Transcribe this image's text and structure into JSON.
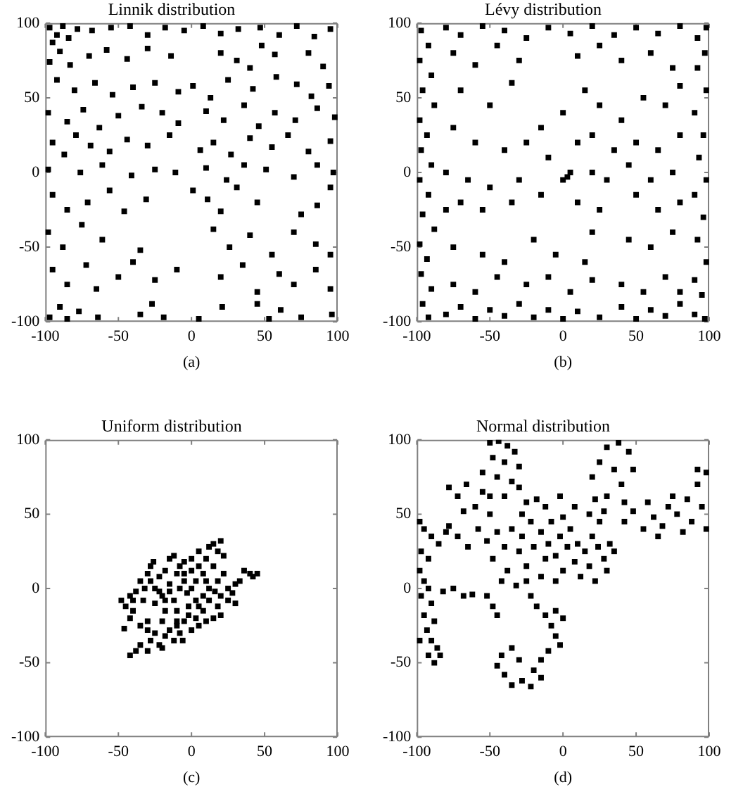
{
  "chart_data": [
    {
      "type": "scatter",
      "title": "Linnik distribution",
      "xlabel": "(a)",
      "color": "#000000",
      "marker": "square",
      "xlim": [
        -100,
        100
      ],
      "ylim": [
        -100,
        100
      ],
      "xticks": [
        -100,
        -50,
        0,
        50,
        100
      ],
      "yticks": [
        -100,
        -50,
        0,
        50,
        100
      ],
      "x": [
        -97,
        -92,
        -88,
        -95,
        -84,
        -90,
        -78,
        -68,
        -55,
        -42,
        -30,
        -18,
        -5,
        8,
        20,
        32,
        47,
        60,
        72,
        84,
        95,
        -97,
        -83,
        -70,
        -58,
        -44,
        -30,
        -14,
        20,
        31,
        40,
        48,
        57,
        80,
        90,
        -92,
        -80,
        -66,
        -54,
        -40,
        -25,
        -9,
        1,
        13,
        25,
        42,
        58,
        72,
        82,
        94,
        -98,
        -85,
        -74,
        -63,
        -50,
        -34,
        -20,
        -9,
        10,
        22,
        36,
        46,
        57,
        71,
        86,
        98,
        -95,
        -87,
        -79,
        -69,
        -56,
        -44,
        -30,
        -15,
        6,
        15,
        27,
        40,
        55,
        66,
        80,
        95,
        -98,
        -76,
        -61,
        -41,
        -25,
        -11,
        10,
        24,
        36,
        51,
        70,
        86,
        97,
        -95,
        -85,
        -71,
        -56,
        -46,
        -31,
        1,
        11,
        20,
        31,
        45,
        75,
        86,
        95,
        -98,
        -88,
        -75,
        -61,
        -35,
        15,
        26,
        40,
        55,
        70,
        85,
        95,
        -95,
        -85,
        -72,
        -65,
        -50,
        -40,
        -25,
        -10,
        20,
        35,
        45,
        60,
        70,
        85,
        95,
        -97,
        -90,
        -85,
        -77,
        -64,
        -35,
        -27,
        -19,
        5,
        21,
        45,
        53,
        61,
        75,
        96
      ],
      "values": [
        97,
        92,
        98,
        87,
        90,
        81,
        96,
        95,
        97,
        98,
        92,
        97,
        95,
        98,
        93,
        96,
        97,
        92,
        98,
        91,
        96,
        74,
        72,
        78,
        82,
        76,
        83,
        78,
        80,
        75,
        70,
        85,
        79,
        80,
        71,
        62,
        55,
        60,
        52,
        57,
        60,
        54,
        58,
        50,
        62,
        56,
        64,
        59,
        51,
        58,
        40,
        34,
        42,
        30,
        38,
        44,
        40,
        33,
        41,
        35,
        45,
        31,
        40,
        35,
        43,
        37,
        20,
        12,
        25,
        18,
        14,
        22,
        18,
        25,
        15,
        20,
        12,
        23,
        17,
        25,
        14,
        21,
        2,
        0,
        5,
        -2,
        2,
        0,
        3,
        -5,
        5,
        2,
        -3,
        5,
        0,
        -15,
        -25,
        -20,
        -12,
        -26,
        -18,
        -12,
        -18,
        -26,
        -10,
        -20,
        -28,
        -22,
        -10,
        -40,
        -50,
        -35,
        -45,
        -52,
        -38,
        -50,
        -42,
        -55,
        -40,
        -48,
        -55,
        -65,
        -75,
        -62,
        -78,
        -70,
        -60,
        -72,
        -65,
        -70,
        -62,
        -80,
        -68,
        -75,
        -65,
        -78,
        -97,
        -90,
        -98,
        -93,
        -97,
        -95,
        -88,
        -97,
        -98,
        -90,
        -88,
        -98,
        -92,
        -97,
        -95
      ]
    },
    {
      "type": "scatter",
      "title": "Lévy distribution",
      "xlabel": "(b)",
      "color": "#000000",
      "marker": "square",
      "xlim": [
        -100,
        100
      ],
      "ylim": [
        -100,
        100
      ],
      "xticks": [
        -100,
        -50,
        0,
        50,
        100
      ],
      "yticks": [
        -100,
        -50,
        0,
        50,
        100
      ],
      "x": [
        -97,
        -92,
        -98,
        -90,
        -96,
        -88,
        -98,
        -93,
        -97,
        -90,
        -98,
        -92,
        -96,
        -88,
        -98,
        -93,
        -97,
        -90,
        -96,
        -92,
        -80,
        -70,
        -60,
        -50,
        -40,
        -30,
        -20,
        -10,
        0,
        10,
        25,
        40,
        50,
        60,
        70,
        80,
        90,
        97,
        -80,
        -70,
        -55,
        -40,
        -25,
        -10,
        5,
        20,
        35,
        50,
        65,
        80,
        92,
        98,
        97,
        92,
        98,
        90,
        96,
        93,
        98,
        90,
        96,
        92,
        98,
        90,
        95,
        -75,
        -60,
        -45,
        -30,
        10,
        25,
        40,
        60,
        75,
        -70,
        -50,
        -35,
        -15,
        0,
        15,
        25,
        40,
        55,
        70,
        80,
        -75,
        -60,
        -40,
        -25,
        -10,
        10,
        20,
        35,
        50,
        65,
        80,
        -80,
        -65,
        -50,
        -30,
        3,
        5,
        0,
        20,
        30,
        45,
        60,
        75,
        -80,
        -70,
        -55,
        -35,
        -15,
        10,
        25,
        50,
        65,
        80,
        -75,
        -55,
        -40,
        -20,
        -5,
        15,
        20,
        45,
        60,
        75,
        -75,
        -60,
        -45,
        -25,
        -10,
        5,
        20,
        40,
        55,
        70,
        80
      ],
      "values": [
        95,
        85,
        75,
        65,
        55,
        45,
        35,
        25,
        15,
        5,
        -5,
        -15,
        -28,
        -38,
        -48,
        -58,
        -68,
        -78,
        -88,
        -97,
        -95,
        -90,
        -98,
        -92,
        -96,
        -88,
        -97,
        -92,
        -98,
        -93,
        -97,
        -90,
        -98,
        -92,
        -96,
        -88,
        -95,
        -98,
        97,
        92,
        98,
        95,
        90,
        97,
        93,
        98,
        92,
        97,
        93,
        98,
        90,
        97,
        80,
        70,
        55,
        40,
        25,
        10,
        -5,
        -15,
        -30,
        -45,
        -60,
        -72,
        -82,
        80,
        72,
        85,
        75,
        78,
        85,
        75,
        80,
        70,
        55,
        45,
        60,
        30,
        40,
        55,
        45,
        35,
        50,
        45,
        58,
        30,
        20,
        15,
        20,
        10,
        20,
        25,
        15,
        20,
        15,
        25,
        0,
        -5,
        -10,
        -5,
        -3,
        0,
        -5,
        0,
        -5,
        5,
        -5,
        0,
        -25,
        -20,
        -25,
        -20,
        -15,
        -20,
        -25,
        -15,
        -25,
        -20,
        -50,
        -55,
        -60,
        -45,
        -55,
        -60,
        -40,
        -45,
        -50,
        -40,
        -75,
        -80,
        -70,
        -75,
        -70,
        -80,
        -72,
        -75,
        -80,
        -70,
        -80
      ]
    },
    {
      "type": "scatter",
      "title": "Uniform distribution",
      "xlabel": "(c)",
      "color": "#000000",
      "marker": "square",
      "xlim": [
        -100,
        100
      ],
      "ylim": [
        -100,
        100
      ],
      "xticks": [
        -100,
        -50,
        0,
        50,
        100
      ],
      "yticks": [
        -100,
        -50,
        0,
        50,
        100
      ],
      "x": [
        -48,
        -45,
        -42,
        -40,
        -38,
        -35,
        -33,
        -30,
        -28,
        -26,
        -25,
        -22,
        -20,
        -18,
        -15,
        -15,
        -12,
        -12,
        -10,
        -8,
        -8,
        -5,
        -5,
        -3,
        0,
        0,
        3,
        5,
        5,
        8,
        10,
        12,
        15,
        15,
        18,
        20,
        22,
        22,
        18,
        12,
        8,
        3,
        -2,
        -10,
        -18,
        -25,
        -30,
        -35,
        -20,
        -46,
        -42,
        -42,
        -38,
        -35,
        -30,
        -28,
        -25,
        -22,
        -18,
        -15,
        -12,
        -10,
        -8,
        -5,
        0,
        -2,
        3,
        5,
        8,
        10,
        15,
        18,
        20,
        20,
        16,
        25,
        25,
        28,
        30,
        33,
        36,
        40,
        45,
        42,
        30,
        12,
        -6,
        -20,
        -30,
        -15,
        -22,
        -28,
        -10,
        0,
        -40,
        10,
        5,
        -18,
        -5,
        -32
      ],
      "values": [
        -8,
        -12,
        -5,
        -15,
        -2,
        5,
        -8,
        10,
        15,
        18,
        0,
        8,
        -5,
        12,
        20,
        3,
        -8,
        22,
        10,
        0,
        15,
        18,
        5,
        -3,
        12,
        20,
        5,
        15,
        25,
        10,
        20,
        28,
        15,
        30,
        25,
        32,
        22,
        10,
        5,
        0,
        -5,
        -8,
        -12,
        -15,
        -15,
        -10,
        -22,
        -25,
        -22,
        -27,
        -20,
        -45,
        -42,
        -38,
        -42,
        -35,
        -30,
        -38,
        -32,
        -28,
        -35,
        -25,
        -30,
        -22,
        -28,
        -18,
        -20,
        -25,
        -15,
        -22,
        -20,
        -12,
        -18,
        -5,
        -2,
        -8,
        0,
        -3,
        3,
        5,
        12,
        10,
        10,
        8,
        -10,
        -8,
        -35,
        -40,
        -28,
        -2,
        -2,
        5,
        -22,
        0,
        -8,
        5,
        -12,
        -8,
        10,
        0
      ]
    },
    {
      "type": "scatter",
      "title": "Normal distribution",
      "xlabel": "(d)",
      "color": "#000000",
      "marker": "square",
      "xlim": [
        -100,
        100
      ],
      "ylim": [
        -100,
        100
      ],
      "xticks": [
        -100,
        -50,
        0,
        50,
        100
      ],
      "yticks": [
        -100,
        -50,
        0,
        50,
        100
      ],
      "x": [
        -98,
        -95,
        -90,
        -85,
        -80,
        -78,
        -97,
        -92,
        -98,
        -95,
        -92,
        -97,
        -90,
        -95,
        -88,
        -93,
        -90,
        -86,
        -92,
        -88,
        -84,
        -98,
        -82,
        -75,
        -68,
        -62,
        -52,
        -48,
        -45,
        -72,
        -65,
        -58,
        -52,
        -48,
        -45,
        -40,
        -38,
        -35,
        -30,
        -28,
        -25,
        -22,
        -20,
        -15,
        -12,
        -10,
        -8,
        -5,
        -2,
        0,
        3,
        5,
        8,
        10,
        12,
        15,
        18,
        20,
        24,
        28,
        32,
        35,
        30,
        22,
        -5,
        -15,
        -25,
        -32,
        -42,
        0,
        8,
        -2,
        -12,
        18,
        25,
        -28,
        -18,
        -78,
        -72,
        -66,
        -60,
        -55,
        -50,
        -68,
        -50,
        -44,
        -38,
        -33,
        -48,
        -40,
        -30,
        -45,
        -35,
        -55,
        -40,
        -30,
        -25,
        -50,
        -22,
        -18,
        -12,
        -8,
        -5,
        -2,
        -10,
        -15,
        -20,
        -28,
        -22,
        -35,
        -40,
        -45,
        -42,
        -35,
        -30,
        -15,
        -5,
        0,
        20,
        25,
        30,
        38,
        45,
        48,
        40,
        30,
        22,
        35,
        42,
        28,
        42,
        48,
        55,
        58,
        62,
        68,
        72,
        78,
        82,
        85,
        88,
        92,
        95,
        98,
        92,
        98,
        75,
        65
      ],
      "values": [
        45,
        40,
        35,
        30,
        38,
        42,
        25,
        20,
        12,
        5,
        0,
        -5,
        -10,
        -18,
        -22,
        -28,
        -35,
        -40,
        -45,
        -50,
        -45,
        -35,
        -2,
        0,
        -5,
        -4,
        -5,
        -12,
        -18,
        35,
        28,
        40,
        32,
        20,
        38,
        28,
        12,
        40,
        25,
        35,
        15,
        45,
        28,
        38,
        20,
        30,
        45,
        22,
        35,
        12,
        28,
        40,
        18,
        30,
        8,
        25,
        15,
        35,
        28,
        20,
        30,
        25,
        12,
        5,
        5,
        8,
        5,
        2,
        5,
        48,
        55,
        62,
        55,
        50,
        45,
        50,
        60,
        68,
        62,
        70,
        55,
        65,
        50,
        52,
        98,
        99,
        96,
        92,
        88,
        85,
        82,
        75,
        72,
        78,
        62,
        68,
        58,
        62,
        -5,
        -12,
        -18,
        -25,
        -32,
        -38,
        -42,
        -48,
        -55,
        -62,
        -66,
        -65,
        -58,
        -52,
        -45,
        -40,
        -48,
        -60,
        -15,
        -20,
        75,
        85,
        95,
        98,
        92,
        80,
        70,
        62,
        60,
        80,
        58,
        52,
        45,
        52,
        40,
        58,
        48,
        42,
        55,
        50,
        38,
        60,
        45,
        70,
        55,
        78,
        80,
        40,
        62,
        35
      ]
    }
  ]
}
